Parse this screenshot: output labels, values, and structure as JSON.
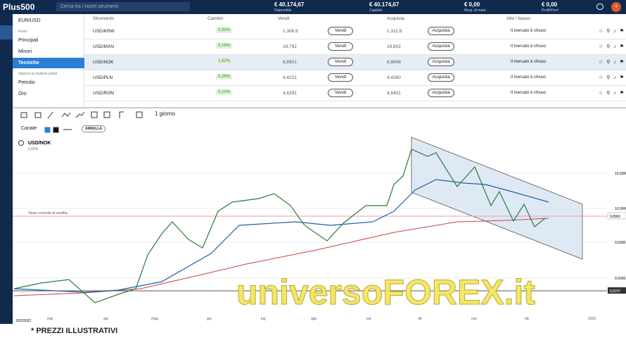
{
  "header": {
    "logo": "Plus500",
    "search": "Cerca tra i nostri strumenti",
    "balances": [
      {
        "value": "€ 40.174,67",
        "label": "Disponibile"
      },
      {
        "value": "€ 40.174,67",
        "label": "Capitale"
      },
      {
        "value": "€ 0,00",
        "label": "Marg. di mant."
      },
      {
        "value": "€ 0,00",
        "label": "Profit/Perd"
      }
    ],
    "notifications": "4"
  },
  "menu": {
    "items": [
      {
        "text": "EUR/USD",
        "kind": "item"
      },
      {
        "text": "Forex",
        "kind": "section"
      },
      {
        "text": "Principali",
        "kind": "item"
      },
      {
        "text": "Minori",
        "kind": "item"
      },
      {
        "text": "Tecniche",
        "kind": "selected"
      },
      {
        "text": "Opzioni su materie prime",
        "kind": "section"
      },
      {
        "text": "Petrolio",
        "kind": "item"
      },
      {
        "text": "Oro",
        "kind": "item"
      }
    ]
  },
  "table": {
    "columns": [
      "Strumento",
      "Cambio",
      "Vendi",
      "Acquista",
      "Alto / basso"
    ],
    "selected_row": 2,
    "rows": [
      [
        "USD/KRW",
        "0,53%",
        "1.308,6",
        "Vendi",
        "1.311,6",
        "Acquista",
        "Il mercato è chiuso"
      ],
      [
        "USD/MXN",
        "0,19%",
        "19,792",
        "Vendi",
        "19,802",
        "Acquista",
        "Il mercato è chiuso"
      ],
      [
        "USD/NOK",
        "1,82%",
        "9,8901",
        "Vendi",
        "9,8948",
        "Acquista",
        "Il mercato è chiuso"
      ],
      [
        "USD/PLN",
        "0,26%",
        "4,4221",
        "Vendi",
        "4,4260",
        "Acquista",
        "Il mercato è chiuso"
      ],
      [
        "USD/RON",
        "0,10%",
        "4,6291",
        "Vendi",
        "4,6401",
        "Acquista",
        "Il mercato è chiuso"
      ]
    ]
  },
  "toolbar": {
    "timeframe": "1 giorno",
    "channel": "Canale",
    "cancel": "ANNULLA"
  },
  "chart": {
    "symbol": "USD/NOK",
    "change": "1,82%",
    "line_label": "Tasso corrente di vendita",
    "price_labels": [
      "10,5000",
      "10,0000",
      "9,5000",
      "9,0000"
    ],
    "current_price": "9,8901",
    "low_line": "8,8237",
    "start_date": "15/2/2022",
    "months": [
      "mar",
      "apr",
      "mag",
      "giu",
      "lug",
      "ago",
      "set",
      "ott",
      "nov",
      "dic",
      "2023"
    ],
    "watermark": "universoFOREX.it"
  },
  "footer": "* PREZZI ILLUSTRATIVI"
}
